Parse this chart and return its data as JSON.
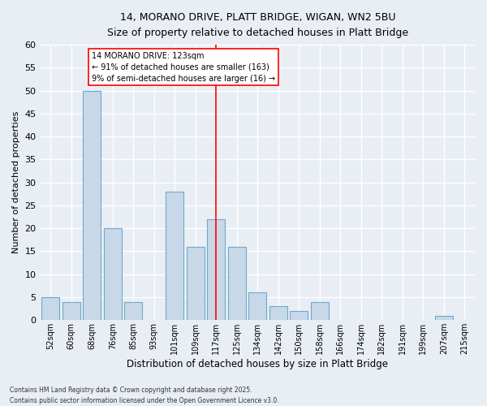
{
  "title_line1": "14, MORANO DRIVE, PLATT BRIDGE, WIGAN, WN2 5BU",
  "title_line2": "Size of property relative to detached houses in Platt Bridge",
  "xlabel": "Distribution of detached houses by size in Platt Bridge",
  "ylabel": "Number of detached properties",
  "categories": [
    "52sqm",
    "60sqm",
    "68sqm",
    "76sqm",
    "85sqm",
    "93sqm",
    "101sqm",
    "109sqm",
    "117sqm",
    "125sqm",
    "134sqm",
    "142sqm",
    "150sqm",
    "158sqm",
    "166sqm",
    "174sqm",
    "182sqm",
    "191sqm",
    "199sqm",
    "207sqm",
    "215sqm"
  ],
  "values": [
    5,
    4,
    50,
    20,
    4,
    0,
    28,
    16,
    22,
    16,
    6,
    3,
    2,
    4,
    0,
    0,
    0,
    0,
    0,
    1,
    0
  ],
  "bar_color": "#c8d8e8",
  "bar_edge_color": "#6fa8cc",
  "background_color": "#e8eef4",
  "grid_color": "#ffffff",
  "annotation_line1": "14 MORANO DRIVE: 123sqm",
  "annotation_line2": "← 91% of detached houses are smaller (163)",
  "annotation_line3": "9% of semi-detached houses are larger (16) →",
  "vline_index": 8,
  "ylim": [
    0,
    60
  ],
  "yticks": [
    0,
    5,
    10,
    15,
    20,
    25,
    30,
    35,
    40,
    45,
    50,
    55,
    60
  ],
  "footer_line1": "Contains HM Land Registry data © Crown copyright and database right 2025.",
  "footer_line2": "Contains public sector information licensed under the Open Government Licence v3.0."
}
